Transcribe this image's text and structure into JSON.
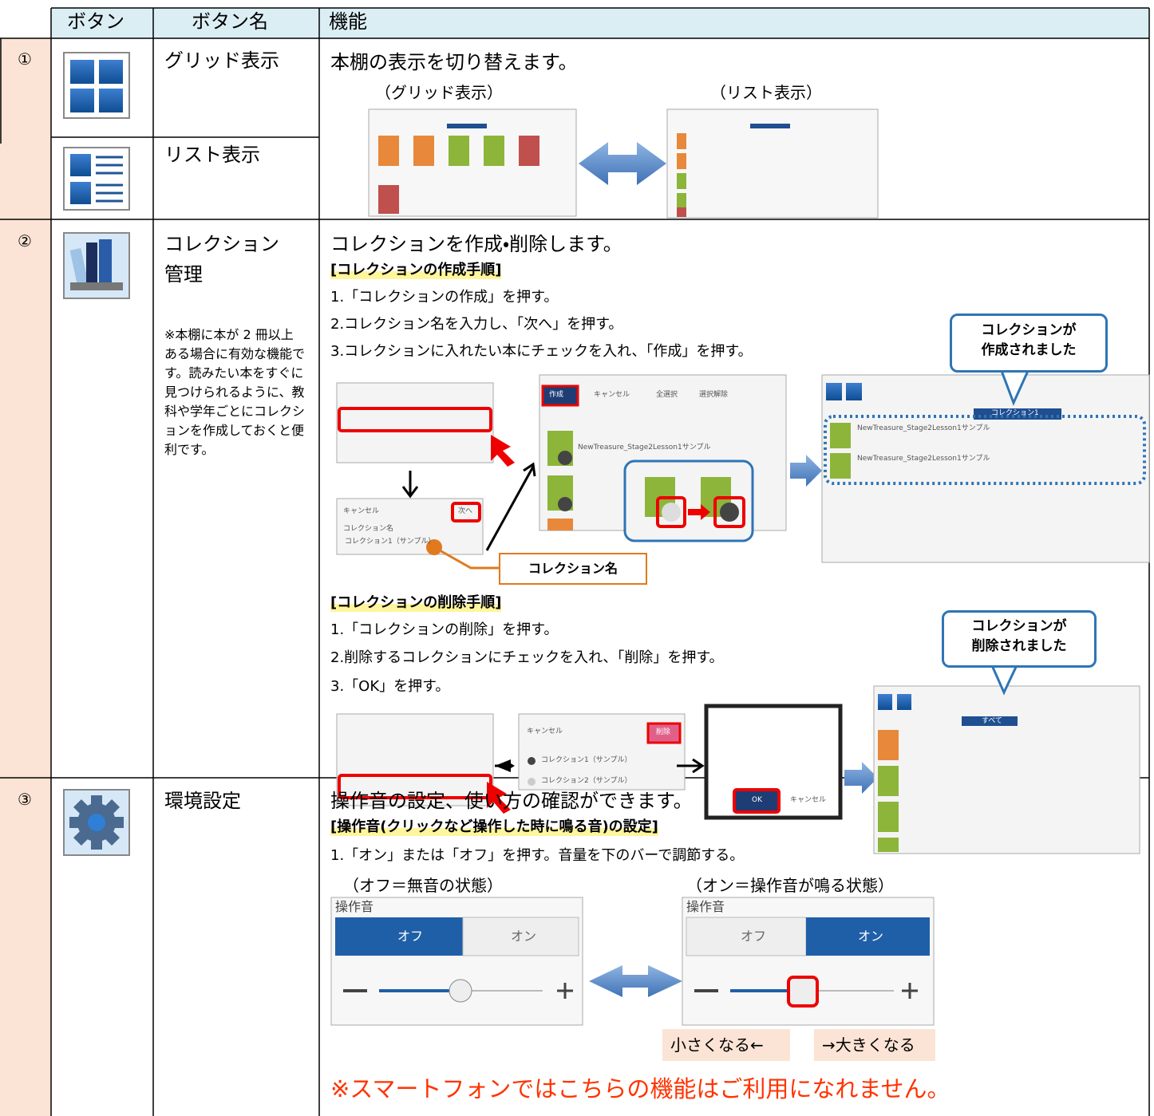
{
  "header": {
    "button": "ボタン",
    "name": "ボタン名",
    "function": "機能"
  },
  "rows": [
    {
      "number": "①",
      "grid_name": "グリッド表示",
      "list_name": "リスト表示",
      "description": "本棚の表示を切り替えます。",
      "captions": [
        "（グリッド表示）",
        "（リスト表示）"
      ]
    },
    {
      "number": "②",
      "name_lines": [
        "コレクション",
        "管理"
      ],
      "note": "※本棚に本が 2 冊以上ある場合に有効な機能です。読みたい本をすぐに見つけられるように、教科や学年ごとにコレクションを作成しておくと便利です。",
      "description": "コレクションを作成・削除します。",
      "create": {
        "heading": "[コレクションの作成手順]",
        "steps": [
          "1.「コレクションの作成」を押す。",
          "2.コレクション名を入力し、「次へ」を押す。",
          "3.コレクションに入れたい本にチェックを入れ、「作成」を押す。"
        ],
        "callout": [
          "コレクションが",
          "作成されました"
        ],
        "name_label": "コレクション名",
        "screen": {
          "create": "作成",
          "cancel": "キャンセル",
          "select_all": "全選択",
          "deselect": "選択解除",
          "next": "次へ",
          "field_label": "コレクション名",
          "field_value": "コレクション1（サンプル）",
          "book": "NewTreasure_Stage2Lesson1サンプル",
          "tab": "コレクション1"
        }
      },
      "delete": {
        "heading": "[コレクションの削除手順]",
        "steps": [
          "1.「コレクションの削除」を押す。",
          "2.削除するコレクションにチェックを入れ、「削除」を押す。",
          "3.「OK」を押す。"
        ],
        "callout": [
          "コレクションが",
          "削除されました"
        ],
        "screen": {
          "cancel": "キャンセル",
          "delete": "削除",
          "item1": "コレクション1（サンプル）",
          "item2": "コレクション2（サンプル）",
          "ok": "OK",
          "tab": "すべて"
        }
      }
    },
    {
      "number": "③",
      "name": "環境設定",
      "description": "操作音の設定、使い方の確認ができます。",
      "heading": "[操作音(クリックなど操作した時に鳴る音)の設定]",
      "steps": [
        "1.「オン」または「オフ」を押す。音量を下のバーで調節する。"
      ],
      "captions": [
        "（オフ＝無音の状態）",
        "（オン＝操作音が鳴る状態）"
      ],
      "panel": {
        "title": "操作音",
        "off": "オフ",
        "on": "オン"
      },
      "volume": [
        "小さくなる←",
        "→大きくなる"
      ],
      "warning": "※スマートフォンではこちらの機能はご利用になれません。"
    }
  ]
}
